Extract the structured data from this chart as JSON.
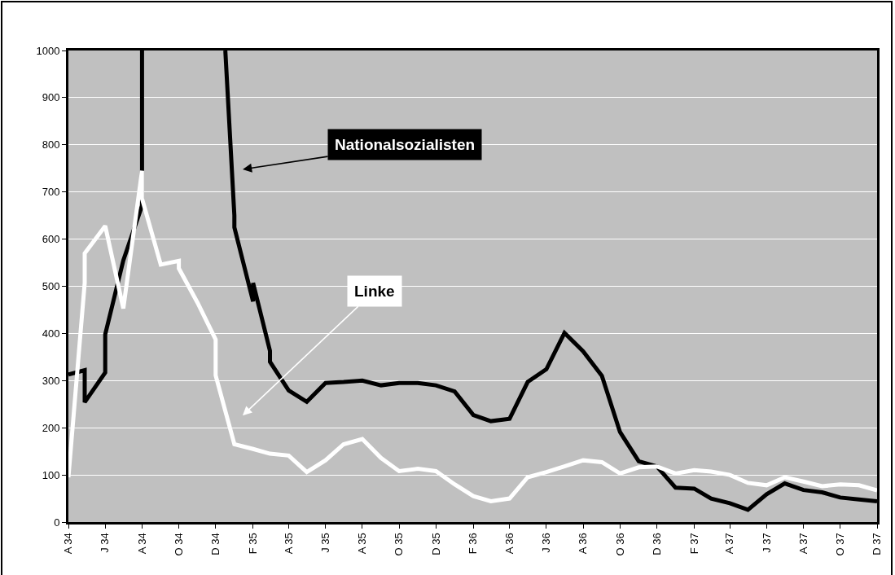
{
  "chart_data": {
    "type": "line",
    "x": [
      "1934-04-01",
      "1934-04-28",
      "1934-04-28",
      "1934-06-01",
      "1934-06-01",
      "1934-07-01",
      "1934-08-01",
      "1934-08-01",
      "1934-10-15",
      "1934-12-17",
      "1935-01-01",
      "1935-01-01",
      "1935-02-01",
      "1935-02-01",
      "1935-03-01",
      "1935-03-01",
      "1935-04-01",
      "1935-05-01",
      "1935-06-01",
      "1935-07-01",
      "1935-08-01",
      "1935-09-01",
      "1935-10-01",
      "1935-11-01",
      "1935-12-01",
      "1936-01-01",
      "1936-02-01",
      "1936-03-01",
      "1936-04-01",
      "1936-05-01",
      "1936-06-01",
      "1936-07-01",
      "1936-08-01",
      "1936-09-01",
      "1936-10-01",
      "1936-11-01",
      "1936-12-01",
      "1937-01-01",
      "1937-02-01",
      "1937-03-01",
      "1937-04-01",
      "1937-05-01",
      "1937-06-01",
      "1937-07-01",
      "1937-08-01",
      "1937-09-01",
      "1937-10-01",
      "1937-11-01",
      "1937-12-01"
    ],
    "series": [
      {
        "name": null,
        "color": "#000000",
        "values": [
          313,
          322,
          254,
          317,
          398,
          555,
          671,
          1000,
          null,
          1000,
          650,
          625,
          468,
          507,
          363,
          340,
          279,
          255,
          295,
          297,
          300,
          290,
          295,
          295,
          290,
          277,
          227,
          214,
          219,
          297,
          324,
          401,
          362,
          310,
          191,
          129,
          118,
          73,
          71,
          50,
          40,
          26,
          59,
          82,
          68,
          63,
          52,
          48,
          44
        ]
      },
      {
        "name": null,
        "color": "#ffffff",
        "x": [
          "1934-04-01",
          "1934-04-28",
          "1934-04-28",
          "1934-06-01",
          "1934-07-01",
          "1934-08-01",
          "1934-08-01",
          "1934-09-01",
          "1934-10-01",
          "1934-10-01",
          "1934-11-01",
          "1934-12-01",
          "1934-12-01",
          "1935-01-01",
          "1935-02-01",
          "1935-03-01",
          "1935-04-01",
          "1935-05-01",
          "1935-06-01",
          "1935-07-01",
          "1935-08-01",
          "1935-09-01",
          "1935-10-01",
          "1935-11-01",
          "1935-12-01",
          "1936-01-01",
          "1936-02-01",
          "1936-03-01",
          "1936-04-01",
          "1936-05-01",
          "1936-06-01",
          "1936-07-01",
          "1936-08-01",
          "1936-09-01",
          "1936-10-01",
          "1936-11-01",
          "1936-12-01",
          "1937-01-01",
          "1937-02-01",
          "1937-03-01",
          "1937-04-01",
          "1937-05-01",
          "1937-06-01",
          "1937-07-01",
          "1937-08-01",
          "1937-09-01",
          "1937-10-01",
          "1937-11-01",
          "1937-12-01"
        ],
        "values": [
          95,
          507,
          570,
          628,
          453,
          745,
          686,
          546,
          554,
          538,
          465,
          387,
          311,
          165,
          155,
          145,
          141,
          106,
          131,
          165,
          176,
          136,
          108,
          113,
          108,
          80,
          55,
          44,
          50,
          95,
          106,
          118,
          131,
          127,
          103,
          116,
          118,
          103,
          110,
          107,
          100,
          83,
          78,
          95,
          86,
          76,
          80,
          78,
          67
        ]
      }
    ],
    "xlim": [
      "1934-04-01",
      "1937-12-01"
    ],
    "xticks": [
      {
        "value": "1934-04-01",
        "label": "A 34"
      },
      {
        "value": "1934-06-01",
        "label": "J 34"
      },
      {
        "value": "1934-08-01",
        "label": "A 34"
      },
      {
        "value": "1934-10-01",
        "label": "O 34"
      },
      {
        "value": "1934-12-01",
        "label": "D 34"
      },
      {
        "value": "1935-02-01",
        "label": "F 35"
      },
      {
        "value": "1935-04-01",
        "label": "A 35"
      },
      {
        "value": "1935-06-01",
        "label": "J 35"
      },
      {
        "value": "1935-08-01",
        "label": "A 35"
      },
      {
        "value": "1935-10-01",
        "label": "O 35"
      },
      {
        "value": "1935-12-01",
        "label": "D 35"
      },
      {
        "value": "1936-02-01",
        "label": "F 36"
      },
      {
        "value": "1936-04-01",
        "label": "A 36"
      },
      {
        "value": "1936-06-01",
        "label": "J 36"
      },
      {
        "value": "1936-08-01",
        "label": "A 36"
      },
      {
        "value": "1936-10-01",
        "label": "O 36"
      },
      {
        "value": "1936-12-01",
        "label": "D 36"
      },
      {
        "value": "1937-02-01",
        "label": "F 37"
      },
      {
        "value": "1937-04-01",
        "label": "A 37"
      },
      {
        "value": "1937-06-01",
        "label": "J 37"
      },
      {
        "value": "1937-08-01",
        "label": "A 37"
      },
      {
        "value": "1937-10-01",
        "label": "O 37"
      },
      {
        "value": "1937-12-01",
        "label": "D 37"
      }
    ],
    "ylim": [
      0,
      1000
    ],
    "yticks": [
      0,
      100,
      200,
      300,
      400,
      500,
      600,
      700,
      800,
      900,
      1000
    ],
    "grid": "y",
    "marker": "none",
    "line_style": "solid",
    "annotations": [
      "Nationalsozialisten",
      "Linke"
    ]
  }
}
